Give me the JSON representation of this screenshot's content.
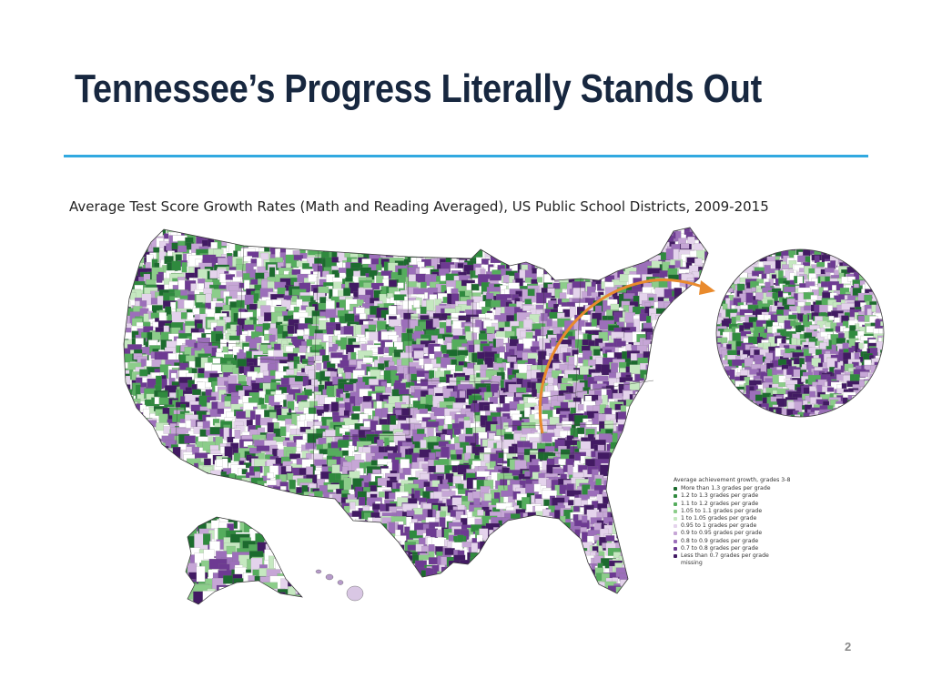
{
  "slide": {
    "title": "Tennessee’s Progress Literally Stands Out",
    "page_number": "2"
  },
  "map": {
    "caption": "Average Test Score Growth Rates (Math and Reading Averaged), US Public School Districts, 2009-2015",
    "arrow_color": "#e98a2c",
    "legend": {
      "title": "Average achievement growth, grades 3-8",
      "items": [
        {
          "label": "More than 1.3 grades per grade",
          "color": "#1c6b2e"
        },
        {
          "label": "1.2 to 1.3 grades per grade",
          "color": "#2f8a3e"
        },
        {
          "label": "1.1 to 1.2 grades per grade",
          "color": "#55ad5d"
        },
        {
          "label": "1.05 to 1.1 grades per grade",
          "color": "#8ccd8a"
        },
        {
          "label": "1 to 1.05 grades per grade",
          "color": "#c5e8c0"
        },
        {
          "label": "0.95 to 1 grades per grade",
          "color": "#e4d3ec"
        },
        {
          "label": "0.9 to 0.95 grades per grade",
          "color": "#c6a6d6"
        },
        {
          "label": "0.8 to 0.9 grades per grade",
          "color": "#9c6fba"
        },
        {
          "label": "0.7 to 0.8 grades per grade",
          "color": "#6d3a92"
        },
        {
          "label": "Less than 0.7 grades per grade",
          "color": "#421a63"
        }
      ],
      "missing_label": "missing"
    }
  }
}
